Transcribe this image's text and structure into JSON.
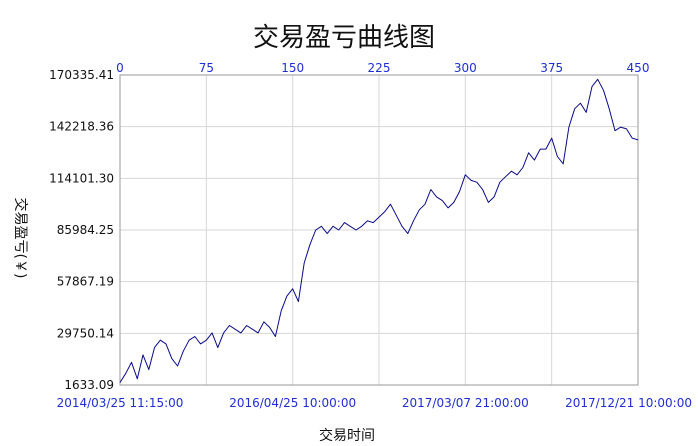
{
  "chart_data": {
    "type": "line",
    "title": "交易盈亏曲线图",
    "xlabel": "交易时间",
    "ylabel": "交易盈亏(￥)",
    "y_ticks": [
      1633.09,
      29750.14,
      57867.19,
      85984.25,
      114101.3,
      142218.36,
      170335.41
    ],
    "y_tick_labels": [
      "1633.09",
      "29750.14",
      "57867.19",
      "85984.25",
      "114101.30",
      "142218.36",
      "170335.41"
    ],
    "ylim": [
      1633.09,
      170335.41
    ],
    "top_ticks": [
      0,
      75,
      150,
      225,
      300,
      375,
      450
    ],
    "top_tick_labels": [
      "0",
      "75",
      "150",
      "225",
      "300",
      "375",
      "450"
    ],
    "xlim": [
      0,
      450
    ],
    "bottom_tick_positions": [
      0,
      150,
      300,
      450
    ],
    "bottom_tick_labels": [
      "2014/03/25 11:15:00",
      "2016/04/25 10:00:00",
      "2017/03/07 21:00:00",
      "2017/12/21 10:00:00"
    ],
    "grid": true,
    "line_color": "#0a0a8a",
    "series": [
      {
        "x": [
          0,
          5,
          10,
          15,
          20,
          25,
          30,
          35,
          40,
          45,
          50,
          55,
          60,
          65,
          70,
          75,
          80,
          85,
          90,
          95,
          100,
          105,
          110,
          115,
          120,
          125,
          130,
          135,
          140,
          145,
          150,
          155,
          160,
          165,
          170,
          175,
          180,
          185,
          190,
          195,
          200,
          205,
          210,
          215,
          220,
          225,
          230,
          235,
          240,
          245,
          250,
          255,
          260,
          265,
          270,
          275,
          280,
          285,
          290,
          295,
          300,
          305,
          310,
          315,
          320,
          325,
          330,
          335,
          340,
          345,
          350,
          355,
          360,
          365,
          370,
          375,
          380,
          385,
          390,
          395,
          400,
          405,
          410,
          415,
          420,
          425,
          430,
          435,
          440,
          445,
          450
        ],
        "y": [
          3000,
          8000,
          14000,
          5000,
          18000,
          10000,
          22000,
          26000,
          24000,
          16000,
          12000,
          20000,
          26000,
          28000,
          24000,
          26000,
          30000,
          22000,
          30000,
          34000,
          32000,
          30000,
          34000,
          32000,
          30000,
          36000,
          33000,
          28000,
          42000,
          50000,
          54000,
          47000,
          68000,
          78000,
          86000,
          88000,
          84000,
          88000,
          86000,
          90000,
          88000,
          86000,
          88000,
          91000,
          90000,
          93000,
          96000,
          100000,
          94000,
          88000,
          84000,
          91000,
          97000,
          100000,
          108000,
          104000,
          102000,
          98000,
          101000,
          107000,
          116000,
          113000,
          112000,
          108000,
          101000,
          104000,
          112000,
          115000,
          118000,
          116000,
          120000,
          128000,
          124000,
          130000,
          130000,
          136000,
          126000,
          122000,
          142000,
          152000,
          155000,
          150000,
          164000,
          168000,
          162000,
          152000,
          140000,
          142000,
          141000,
          136000,
          135000
        ]
      }
    ]
  }
}
